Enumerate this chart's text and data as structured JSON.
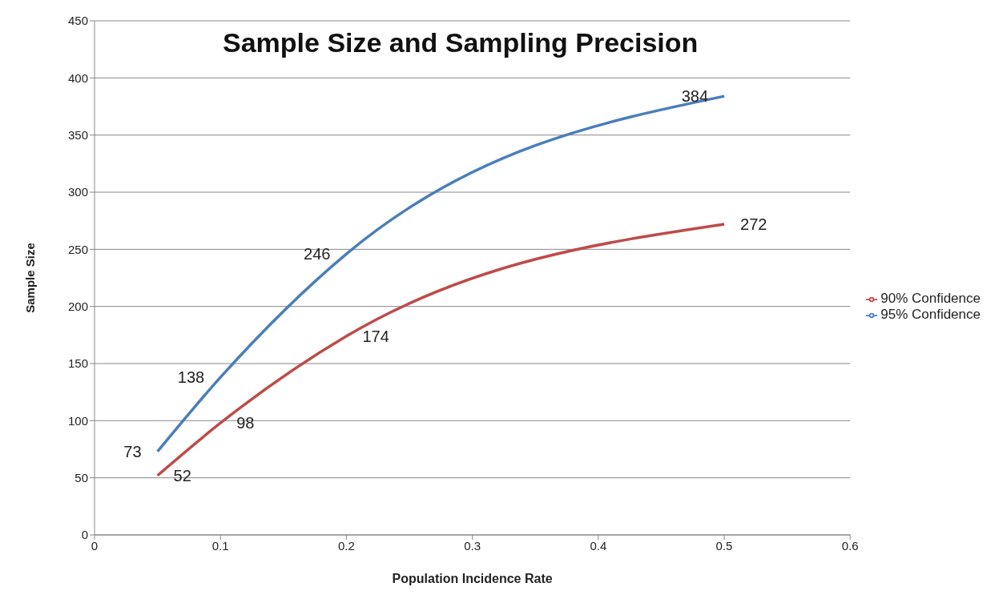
{
  "chart_data": {
    "type": "line",
    "title": "Sample Size and Sampling Precision",
    "xlabel": "Population Incidence Rate",
    "ylabel": "Sample Size",
    "x": [
      0.05,
      0.1,
      0.2,
      0.5
    ],
    "series": [
      {
        "name": "95% Confidence",
        "color": "#4a7ebb",
        "values": [
          73,
          138,
          246,
          384
        ]
      },
      {
        "name": "90% Confidence",
        "color": "#be4b48",
        "values": [
          52,
          98,
          174,
          272
        ]
      }
    ],
    "xlim": [
      0,
      0.6
    ],
    "xticks": [
      0,
      0.1,
      0.2,
      0.3,
      0.4,
      0.5,
      0.6
    ],
    "ylim": [
      0,
      450
    ],
    "yticks": [
      0,
      50,
      100,
      150,
      200,
      250,
      300,
      350,
      400,
      450
    ],
    "grid": "y",
    "legend": "right",
    "marker": "none",
    "line_style": "solid",
    "data_labels": true
  }
}
